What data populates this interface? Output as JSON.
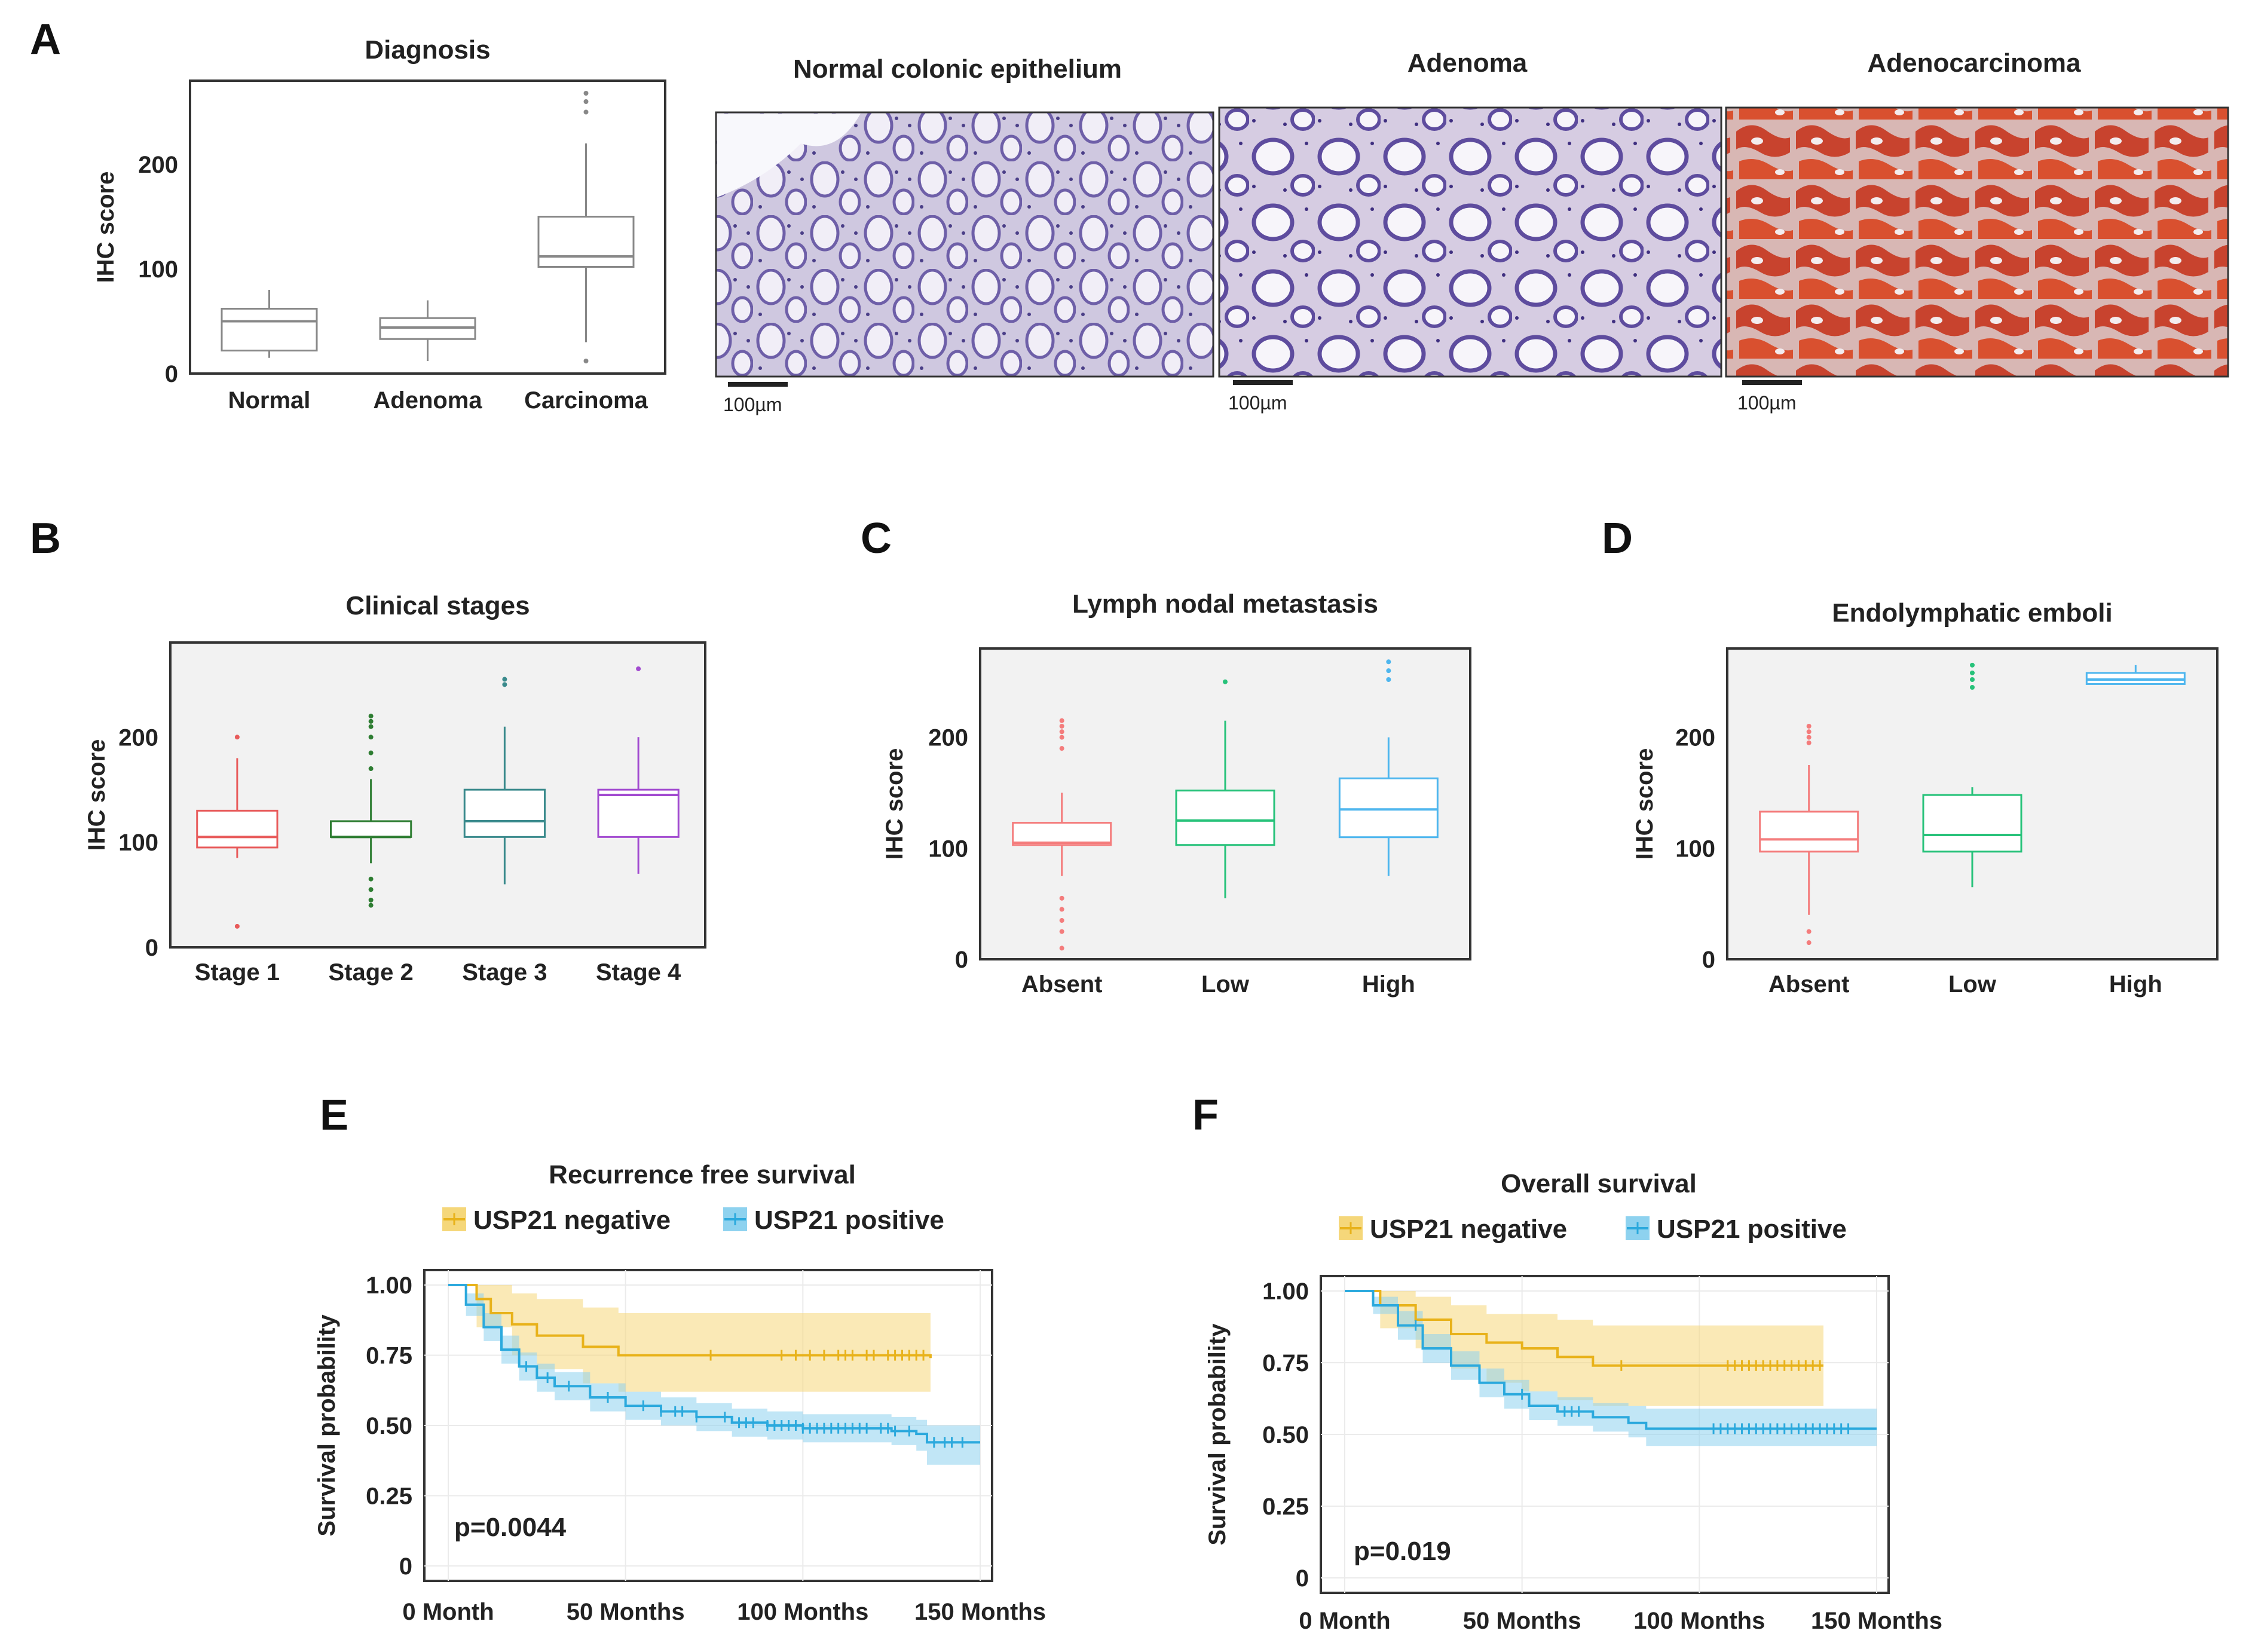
{
  "panel_letters": {
    "A": "A",
    "B": "B",
    "C": "C",
    "D": "D",
    "E": "E",
    "F": "F"
  },
  "colors": {
    "normal_border": "#888888",
    "yellow": "#E8B21A",
    "yellow_band": "#F5D77A",
    "blue": "#2BA9DD",
    "blue_band": "#8ED2EF",
    "stage1": "#E85B5B",
    "stage2": "#2E7D32",
    "stage3": "#3A8A8C",
    "stage4": "#A24BD0",
    "absent": "#F47C7C",
    "low": "#27C27A",
    "high": "#4EB6EE",
    "ihc_stain": "#C8432E",
    "hematoxylin": "#8A7EB8"
  },
  "histology": {
    "images": [
      {
        "title": "Normal colonic epithelium",
        "scale_bar": "100µm",
        "tissue": "normal"
      },
      {
        "title": "Adenoma",
        "scale_bar": "100µm",
        "tissue": "adenoma"
      },
      {
        "title": "Adenocarcinoma",
        "scale_bar": "100µm",
        "tissue": "adenocarcinoma"
      }
    ]
  },
  "chart_data": [
    {
      "id": "A",
      "type": "boxplot",
      "title": "Diagnosis",
      "xlabel": "",
      "ylabel": "IHC score",
      "ylim": [
        0,
        280
      ],
      "yticks": [
        0,
        100,
        200
      ],
      "categories": [
        "Normal",
        "Adenoma",
        "Carcinoma"
      ],
      "boxes": [
        {
          "name": "Normal",
          "min": 15,
          "q1": 22,
          "median": 50,
          "q3": 62,
          "max": 80,
          "outliers": [],
          "color": "#888888"
        },
        {
          "name": "Adenoma",
          "min": 12,
          "q1": 33,
          "median": 44,
          "q3": 53,
          "max": 70,
          "outliers": [],
          "color": "#888888"
        },
        {
          "name": "Carcinoma",
          "min": 30,
          "q1": 102,
          "median": 112,
          "q3": 150,
          "max": 220,
          "outliers": [
            12,
            250,
            260,
            268
          ],
          "color": "#888888"
        }
      ]
    },
    {
      "id": "B",
      "type": "boxplot",
      "title": "Clinical stages",
      "xlabel": "",
      "ylabel": "IHC score",
      "ylim": [
        0,
        290
      ],
      "yticks": [
        0,
        100,
        200
      ],
      "categories": [
        "Stage 1",
        "Stage 2",
        "Stage 3",
        "Stage 4"
      ],
      "boxes": [
        {
          "name": "Stage 1",
          "min": 85,
          "q1": 95,
          "median": 105,
          "q3": 130,
          "max": 180,
          "outliers": [
            20,
            200
          ],
          "color": "#E85B5B"
        },
        {
          "name": "Stage 2",
          "min": 80,
          "q1": 105,
          "median": 105,
          "q3": 120,
          "max": 160,
          "outliers": [
            40,
            45,
            55,
            65,
            170,
            185,
            200,
            210,
            215,
            220
          ],
          "color": "#2E7D32"
        },
        {
          "name": "Stage 3",
          "min": 60,
          "q1": 105,
          "median": 120,
          "q3": 150,
          "max": 210,
          "outliers": [
            250,
            255
          ],
          "color": "#3A8A8C"
        },
        {
          "name": "Stage 4",
          "min": 70,
          "q1": 105,
          "median": 145,
          "q3": 150,
          "max": 200,
          "outliers": [
            265
          ],
          "color": "#A24BD0"
        }
      ]
    },
    {
      "id": "C",
      "type": "boxplot",
      "title": "Lymph nodal metastasis",
      "xlabel": "",
      "ylabel": "IHC score",
      "ylim": [
        0,
        280
      ],
      "yticks": [
        0,
        100,
        200
      ],
      "categories": [
        "Absent",
        "Low",
        "High"
      ],
      "boxes": [
        {
          "name": "Absent",
          "min": 75,
          "q1": 103,
          "median": 105,
          "q3": 123,
          "max": 150,
          "outliers": [
            10,
            25,
            35,
            45,
            55,
            190,
            200,
            205,
            210,
            215
          ],
          "color": "#F47C7C"
        },
        {
          "name": "Low",
          "min": 55,
          "q1": 103,
          "median": 125,
          "q3": 152,
          "max": 215,
          "outliers": [
            250
          ],
          "color": "#27C27A"
        },
        {
          "name": "High",
          "min": 75,
          "q1": 110,
          "median": 135,
          "q3": 163,
          "max": 200,
          "outliers": [
            252,
            260,
            268
          ],
          "color": "#4EB6EE"
        }
      ]
    },
    {
      "id": "D",
      "type": "boxplot",
      "title": "Endolymphatic emboli",
      "xlabel": "",
      "ylabel": "IHC score",
      "ylim": [
        0,
        280
      ],
      "yticks": [
        0,
        100,
        200
      ],
      "categories": [
        "Absent",
        "Low",
        "High"
      ],
      "boxes": [
        {
          "name": "Absent",
          "min": 40,
          "q1": 97,
          "median": 108,
          "q3": 133,
          "max": 175,
          "outliers": [
            15,
            25,
            195,
            200,
            205,
            210
          ],
          "color": "#F47C7C"
        },
        {
          "name": "Low",
          "min": 65,
          "q1": 97,
          "median": 112,
          "q3": 148,
          "max": 155,
          "outliers": [
            245,
            252,
            258,
            265
          ],
          "color": "#27C27A"
        },
        {
          "name": "High",
          "min": 248,
          "q1": 248,
          "median": 252,
          "q3": 258,
          "max": 265,
          "outliers": [],
          "color": "#4EB6EE"
        }
      ]
    },
    {
      "id": "E",
      "type": "line",
      "subtype": "kaplan-meier",
      "title": "Recurrence free survival",
      "xlabel": "",
      "ylabel": "Survival probability",
      "xlim": [
        0,
        150
      ],
      "ylim": [
        0,
        1
      ],
      "xticks": [
        0,
        50,
        100,
        150
      ],
      "xtick_labels": [
        "0 Month",
        "50 Months",
        "100 Months",
        "150 Months"
      ],
      "yticks": [
        0,
        0.25,
        0.5,
        0.75,
        1.0
      ],
      "ytick_labels": [
        "0",
        "0.25",
        "0.50",
        "0.75",
        "1.00"
      ],
      "annotation": "p=0.0044",
      "series": [
        {
          "name": "USP21 negative",
          "color": "#E8B21A",
          "band_color": "#F5D77A",
          "points": [
            [
              0,
              1.0
            ],
            [
              8,
              0.95
            ],
            [
              12,
              0.9
            ],
            [
              18,
              0.86
            ],
            [
              25,
              0.82
            ],
            [
              38,
              0.78
            ],
            [
              48,
              0.75
            ],
            [
              136,
              0.74
            ]
          ],
          "upper": [
            [
              0,
              1.0
            ],
            [
              8,
              1.0
            ],
            [
              18,
              0.97
            ],
            [
              25,
              0.95
            ],
            [
              38,
              0.92
            ],
            [
              48,
              0.9
            ],
            [
              136,
              0.9
            ]
          ],
          "lower": [
            [
              0,
              1.0
            ],
            [
              8,
              0.85
            ],
            [
              18,
              0.75
            ],
            [
              25,
              0.7
            ],
            [
              38,
              0.65
            ],
            [
              48,
              0.62
            ],
            [
              136,
              0.61
            ]
          ],
          "censor": [
            74,
            94,
            98,
            102,
            106,
            110,
            112,
            114,
            118,
            120,
            124,
            126,
            128,
            130,
            132,
            134
          ]
        },
        {
          "name": "USP21 positive",
          "color": "#2BA9DD",
          "band_color": "#8ED2EF",
          "points": [
            [
              0,
              1.0
            ],
            [
              5,
              0.93
            ],
            [
              10,
              0.85
            ],
            [
              15,
              0.77
            ],
            [
              20,
              0.71
            ],
            [
              25,
              0.67
            ],
            [
              30,
              0.64
            ],
            [
              40,
              0.6
            ],
            [
              50,
              0.57
            ],
            [
              60,
              0.55
            ],
            [
              70,
              0.53
            ],
            [
              80,
              0.51
            ],
            [
              90,
              0.5
            ],
            [
              100,
              0.49
            ],
            [
              115,
              0.49
            ],
            [
              125,
              0.48
            ],
            [
              132,
              0.47
            ],
            [
              135,
              0.44
            ],
            [
              150,
              0.44
            ]
          ],
          "upper": [
            [
              0,
              1.0
            ],
            [
              5,
              0.97
            ],
            [
              10,
              0.9
            ],
            [
              15,
              0.82
            ],
            [
              20,
              0.76
            ],
            [
              25,
              0.72
            ],
            [
              30,
              0.69
            ],
            [
              40,
              0.65
            ],
            [
              50,
              0.62
            ],
            [
              60,
              0.6
            ],
            [
              70,
              0.58
            ],
            [
              80,
              0.56
            ],
            [
              90,
              0.55
            ],
            [
              100,
              0.54
            ],
            [
              125,
              0.53
            ],
            [
              132,
              0.52
            ],
            [
              135,
              0.5
            ],
            [
              150,
              0.5
            ]
          ],
          "lower": [
            [
              0,
              1.0
            ],
            [
              5,
              0.89
            ],
            [
              10,
              0.8
            ],
            [
              15,
              0.72
            ],
            [
              20,
              0.66
            ],
            [
              25,
              0.62
            ],
            [
              30,
              0.59
            ],
            [
              40,
              0.55
            ],
            [
              50,
              0.52
            ],
            [
              60,
              0.5
            ],
            [
              70,
              0.48
            ],
            [
              80,
              0.46
            ],
            [
              90,
              0.45
            ],
            [
              100,
              0.44
            ],
            [
              125,
              0.43
            ],
            [
              132,
              0.41
            ],
            [
              135,
              0.36
            ],
            [
              150,
              0.36
            ]
          ],
          "censor": [
            22,
            28,
            34,
            45,
            55,
            60,
            64,
            66,
            70,
            78,
            82,
            84,
            86,
            90,
            92,
            94,
            96,
            98,
            100,
            102,
            104,
            106,
            108,
            110,
            112,
            114,
            116,
            118,
            122,
            124,
            126,
            130,
            137,
            140,
            142,
            145
          ]
        }
      ]
    },
    {
      "id": "F",
      "type": "line",
      "subtype": "kaplan-meier",
      "title": "Overall survival",
      "xlabel": "",
      "ylabel": "Survival probability",
      "xlim": [
        0,
        150
      ],
      "ylim": [
        0,
        1
      ],
      "xticks": [
        0,
        50,
        100,
        150
      ],
      "xtick_labels": [
        "0 Month",
        "50 Months",
        "100 Months",
        "150 Months"
      ],
      "yticks": [
        0,
        0.25,
        0.5,
        0.75,
        1.0
      ],
      "ytick_labels": [
        "0",
        "0.25",
        "0.50",
        "0.75",
        "1.00"
      ],
      "annotation": "p=0.019",
      "series": [
        {
          "name": "USP21 negative",
          "color": "#E8B21A",
          "band_color": "#F5D77A",
          "points": [
            [
              0,
              1.0
            ],
            [
              10,
              0.95
            ],
            [
              20,
              0.9
            ],
            [
              30,
              0.85
            ],
            [
              40,
              0.82
            ],
            [
              50,
              0.8
            ],
            [
              60,
              0.77
            ],
            [
              70,
              0.74
            ],
            [
              135,
              0.74
            ]
          ],
          "upper": [
            [
              0,
              1.0
            ],
            [
              10,
              1.0
            ],
            [
              20,
              0.98
            ],
            [
              30,
              0.95
            ],
            [
              40,
              0.92
            ],
            [
              60,
              0.9
            ],
            [
              70,
              0.88
            ],
            [
              135,
              0.88
            ]
          ],
          "lower": [
            [
              0,
              1.0
            ],
            [
              10,
              0.87
            ],
            [
              20,
              0.8
            ],
            [
              30,
              0.73
            ],
            [
              40,
              0.68
            ],
            [
              50,
              0.65
            ],
            [
              60,
              0.62
            ],
            [
              70,
              0.6
            ],
            [
              135,
              0.6
            ]
          ],
          "censor": [
            78,
            108,
            110,
            112,
            114,
            116,
            118,
            120,
            122,
            124,
            126,
            128,
            130,
            132,
            134
          ]
        },
        {
          "name": "USP21 positive",
          "color": "#2BA9DD",
          "band_color": "#8ED2EF",
          "points": [
            [
              0,
              1.0
            ],
            [
              8,
              0.95
            ],
            [
              15,
              0.88
            ],
            [
              22,
              0.8
            ],
            [
              30,
              0.74
            ],
            [
              38,
              0.68
            ],
            [
              45,
              0.64
            ],
            [
              52,
              0.6
            ],
            [
              60,
              0.58
            ],
            [
              70,
              0.56
            ],
            [
              80,
              0.54
            ],
            [
              85,
              0.52
            ],
            [
              150,
              0.52
            ]
          ],
          "upper": [
            [
              0,
              1.0
            ],
            [
              8,
              0.98
            ],
            [
              15,
              0.93
            ],
            [
              22,
              0.85
            ],
            [
              30,
              0.79
            ],
            [
              38,
              0.73
            ],
            [
              45,
              0.69
            ],
            [
              52,
              0.65
            ],
            [
              60,
              0.63
            ],
            [
              70,
              0.61
            ],
            [
              80,
              0.6
            ],
            [
              85,
              0.59
            ],
            [
              150,
              0.59
            ]
          ],
          "lower": [
            [
              0,
              1.0
            ],
            [
              8,
              0.92
            ],
            [
              15,
              0.83
            ],
            [
              22,
              0.75
            ],
            [
              30,
              0.69
            ],
            [
              38,
              0.63
            ],
            [
              45,
              0.59
            ],
            [
              52,
              0.55
            ],
            [
              60,
              0.53
            ],
            [
              70,
              0.51
            ],
            [
              80,
              0.49
            ],
            [
              85,
              0.46
            ],
            [
              150,
              0.46
            ]
          ],
          "censor": [
            20,
            50,
            62,
            64,
            66,
            104,
            106,
            108,
            110,
            112,
            114,
            116,
            118,
            120,
            122,
            124,
            126,
            128,
            130,
            132,
            134,
            136,
            138,
            140,
            142
          ]
        }
      ]
    }
  ]
}
